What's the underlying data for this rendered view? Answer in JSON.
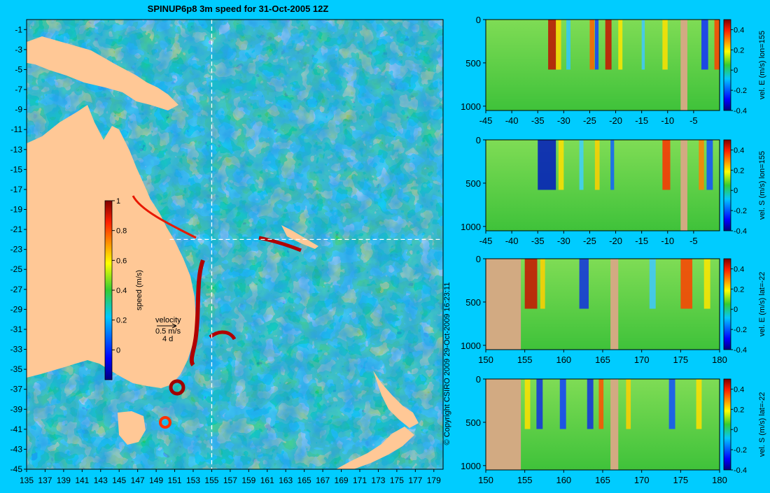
{
  "background_color": "#00ccff",
  "land_color": "#ffc896",
  "section_land_color": "#d2aa82",
  "chart_data": [
    {
      "type": "heatmap",
      "title": "SPINUP6p8 3m speed for 31-Oct-2005 12Z",
      "xlabel": "",
      "ylabel": "",
      "xlim": [
        135,
        180
      ],
      "ylim": [
        -45,
        0
      ],
      "xticks": [
        135,
        137,
        139,
        141,
        143,
        145,
        147,
        149,
        151,
        153,
        155,
        157,
        159,
        161,
        163,
        165,
        167,
        169,
        171,
        173,
        175,
        177,
        179
      ],
      "yticks": [
        -1,
        -3,
        -5,
        -7,
        -9,
        -11,
        -13,
        -15,
        -17,
        -19,
        -21,
        -23,
        -25,
        -27,
        -29,
        -31,
        -33,
        -35,
        -37,
        -39,
        -41,
        -43,
        -45
      ],
      "section_lines": {
        "lon": 155,
        "lat": -22
      },
      "colorbar": {
        "label": "speed (m/s)",
        "range": [
          -0.2,
          1
        ],
        "ticks": [
          0,
          0.2,
          0.4,
          0.6,
          0.8,
          1
        ]
      },
      "velocity_key": {
        "title": "velocity",
        "speed": "0.5 m/s",
        "duration": "4 d"
      },
      "copyright": "© Copyright CSIRO 2009   29-Oct-2009 16:23:11"
    },
    {
      "type": "heatmap",
      "xlim": [
        -45,
        0
      ],
      "ylim": [
        1050,
        0
      ],
      "xticks": [
        -45,
        -40,
        -35,
        -30,
        -25,
        -20,
        -15,
        -10,
        -5
      ],
      "yticks": [
        0,
        500,
        1000
      ],
      "colorbar": {
        "label": "vel. E (m/s) lon=155",
        "range": [
          -0.4,
          0.5
        ],
        "ticks": [
          0.4,
          0.2,
          0,
          -0.2,
          -0.4
        ]
      }
    },
    {
      "type": "heatmap",
      "xlim": [
        -45,
        0
      ],
      "ylim": [
        1050,
        0
      ],
      "xticks": [
        -45,
        -40,
        -35,
        -30,
        -25,
        -20,
        -15,
        -10,
        -5
      ],
      "yticks": [
        0,
        500,
        1000
      ],
      "colorbar": {
        "label": "vel. S (m/s) lon=155",
        "range": [
          -0.4,
          0.5
        ],
        "ticks": [
          0.4,
          0.2,
          0,
          -0.2,
          -0.4
        ]
      }
    },
    {
      "type": "heatmap",
      "xlim": [
        150,
        180
      ],
      "ylim": [
        1050,
        0
      ],
      "xticks": [
        150,
        155,
        160,
        165,
        170,
        175,
        180
      ],
      "yticks": [
        0,
        500,
        1000
      ],
      "colorbar": {
        "label": "vel. E (m/s) lat=-22",
        "range": [
          -0.4,
          0.5
        ],
        "ticks": [
          0.4,
          0.2,
          0,
          -0.2,
          -0.4
        ]
      }
    },
    {
      "type": "heatmap",
      "xlim": [
        150,
        180
      ],
      "ylim": [
        1050,
        0
      ],
      "xticks": [
        150,
        155,
        160,
        165,
        170,
        175,
        180
      ],
      "yticks": [
        0,
        500,
        1000
      ],
      "colorbar": {
        "label": "vel. S (m/s) lat=-22",
        "range": [
          -0.4,
          0.5
        ],
        "ticks": [
          0.4,
          0.2,
          0,
          -0.2,
          -0.4
        ]
      }
    }
  ]
}
